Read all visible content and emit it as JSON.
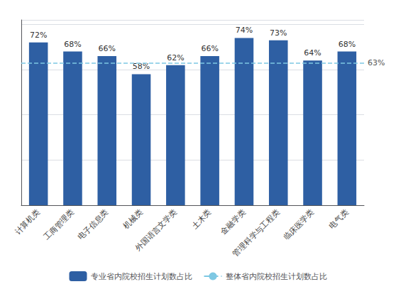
{
  "chart_data": {
    "type": "bar",
    "categories": [
      "计算机类",
      "工商管理类",
      "电子信息类",
      "机械类",
      "外国语言文学类",
      "土木类",
      "金融学类",
      "管理科学与工程类",
      "临床医学类",
      "电气类"
    ],
    "series": [
      {
        "name": "专业省内院校招生计划数占比",
        "type": "bar",
        "color": "#2e5fa3",
        "values": [
          72,
          68,
          66,
          58,
          62,
          66,
          74,
          73,
          64,
          68
        ],
        "value_labels": [
          "72%",
          "68%",
          "66%",
          "58%",
          "62%",
          "66%",
          "74%",
          "73%",
          "64%",
          "68%"
        ]
      }
    ],
    "reference_line": {
      "name": "整体省内院校招生计划数占比",
      "value": 63,
      "label": "63%",
      "color": "#7ec8e3",
      "line_style": "dashed"
    },
    "data_labels": true,
    "ylim": [
      0,
      82
    ],
    "yticks": [
      0,
      20,
      40,
      60,
      80
    ],
    "grid": true,
    "tick_labels": "x",
    "legend": "bottom"
  }
}
